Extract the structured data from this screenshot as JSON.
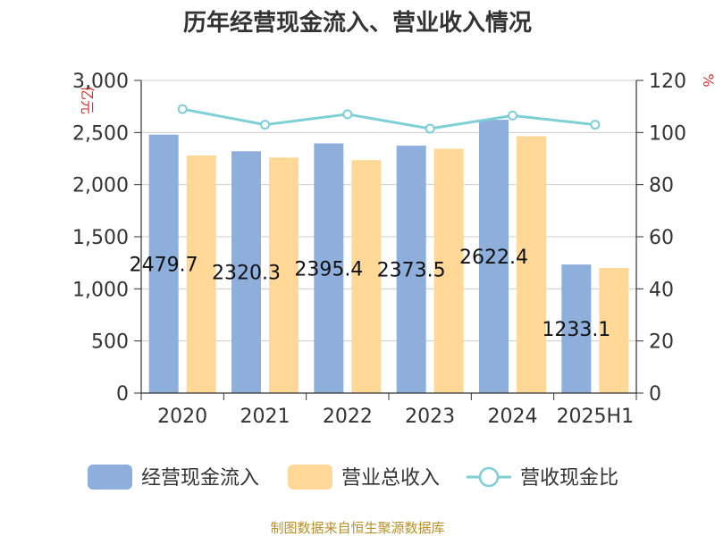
{
  "chart_data": {
    "type": "bar",
    "title": "历年经营现金流入、营业收入情况",
    "categories": [
      "2020",
      "2021",
      "2022",
      "2023",
      "2024",
      "2025H1"
    ],
    "series": [
      {
        "name": "经营现金流入",
        "type": "bar",
        "axis": "left",
        "color": "#8eaedb",
        "values": [
          2479.7,
          2320.3,
          2395.4,
          2373.5,
          2622.4,
          1233.1
        ]
      },
      {
        "name": "营业总收入",
        "type": "bar",
        "axis": "left",
        "color": "#ffd898",
        "values": [
          2280,
          2260,
          2235,
          2345,
          2465,
          1200
        ]
      },
      {
        "name": "营收现金比",
        "type": "line",
        "axis": "right",
        "color": "#7ecfd6",
        "values": [
          109,
          103,
          107,
          101.5,
          106.5,
          103
        ]
      }
    ],
    "data_labels": [
      "2479.7",
      "2320.3",
      "2395.4",
      "2373.5",
      "2622.4",
      "1233.1"
    ],
    "y_left": {
      "unit": "亿元",
      "ylim": [
        0,
        3000
      ],
      "ticks": [
        "0",
        "500",
        "1,000",
        "1,500",
        "2,000",
        "2,500",
        "3,000"
      ]
    },
    "y_right": {
      "unit": "%",
      "ylim": [
        0,
        120
      ],
      "ticks": [
        "0",
        "20",
        "40",
        "60",
        "80",
        "100",
        "120"
      ]
    },
    "grid": true,
    "legend": "bottom",
    "source": "制图数据来自恒生聚源数据库"
  }
}
